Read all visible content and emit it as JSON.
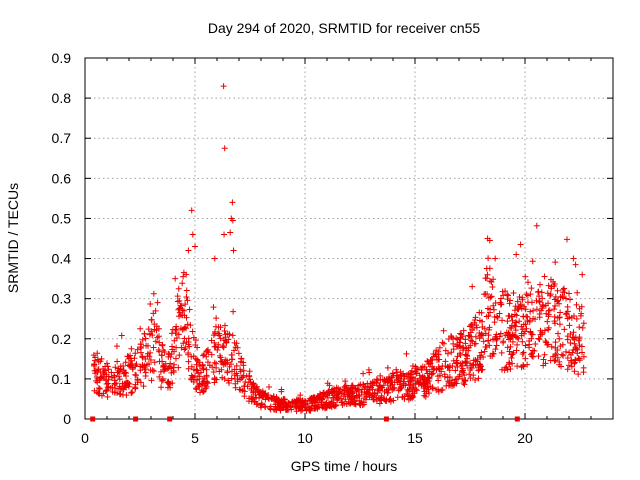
{
  "chart_data": {
    "type": "scatter",
    "title": "Day 294 of 2020, SRMTID for receiver cn55",
    "xlabel": "GPS time / hours",
    "ylabel": "SRMTID / TECUs",
    "xlim": [
      0,
      24
    ],
    "ylim": [
      0,
      0.9
    ],
    "xticks": [
      "0",
      "5",
      "10",
      "15",
      "20"
    ],
    "yticks": [
      "0",
      "0.1",
      "0.2",
      "0.3",
      "0.4",
      "0.5",
      "0.6",
      "0.7",
      "0.8",
      "0.9"
    ],
    "grid": true,
    "marker": "+",
    "color": "#ee0000",
    "seed": 294,
    "x_range": [
      0.4,
      22.7
    ],
    "gap_markers_x": [
      0.35,
      2.3,
      3.85,
      13.7,
      19.65
    ],
    "series": [
      {
        "name": "SRMTID",
        "profile_hours": [
          0.4,
          0.6,
          1.0,
          1.5,
          2.0,
          2.4,
          2.6,
          3.0,
          3.2,
          3.5,
          3.8,
          4.2,
          4.5,
          4.8,
          5.2,
          5.6,
          6.0,
          6.4,
          6.8,
          7.2,
          7.6,
          8.0,
          8.5,
          9.0,
          9.5,
          10.0,
          10.5,
          11.0,
          11.5,
          12.0,
          12.5,
          13.0,
          13.5,
          14.0,
          14.5,
          15.0,
          15.5,
          16.0,
          16.5,
          17.0,
          17.5,
          18.0,
          18.3,
          18.6,
          19.0,
          19.5,
          20.0,
          20.5,
          21.0,
          21.5,
          22.0,
          22.4,
          22.7
        ],
        "profile_median": [
          0.13,
          0.11,
          0.1,
          0.1,
          0.11,
          0.12,
          0.14,
          0.17,
          0.2,
          0.13,
          0.11,
          0.22,
          0.26,
          0.18,
          0.11,
          0.12,
          0.18,
          0.16,
          0.14,
          0.1,
          0.07,
          0.05,
          0.04,
          0.035,
          0.035,
          0.035,
          0.04,
          0.05,
          0.055,
          0.06,
          0.06,
          0.065,
          0.07,
          0.08,
          0.085,
          0.09,
          0.1,
          0.12,
          0.14,
          0.15,
          0.16,
          0.19,
          0.28,
          0.24,
          0.22,
          0.22,
          0.22,
          0.23,
          0.24,
          0.24,
          0.22,
          0.2,
          0.2
        ],
        "outliers": [
          [
            6.3,
            0.83
          ],
          [
            6.35,
            0.675
          ],
          [
            4.85,
            0.52
          ],
          [
            6.7,
            0.54
          ],
          [
            6.65,
            0.5
          ],
          [
            6.72,
            0.495
          ],
          [
            6.32,
            0.46
          ],
          [
            6.6,
            0.465
          ],
          [
            4.9,
            0.46
          ],
          [
            5.0,
            0.43
          ],
          [
            4.7,
            0.42
          ],
          [
            5.9,
            0.4
          ],
          [
            6.75,
            0.42
          ],
          [
            18.3,
            0.45
          ],
          [
            18.4,
            0.445
          ],
          [
            19.8,
            0.435
          ],
          [
            19.6,
            0.41
          ],
          [
            22.2,
            0.4
          ],
          [
            22.3,
            0.385
          ],
          [
            22.6,
            0.36
          ],
          [
            21.2,
            0.33
          ],
          [
            17.6,
            0.33
          ],
          [
            3.3,
            0.29
          ],
          [
            4.6,
            0.36
          ],
          [
            4.1,
            0.35
          ],
          [
            16.3,
            0.22
          ]
        ]
      }
    ]
  }
}
